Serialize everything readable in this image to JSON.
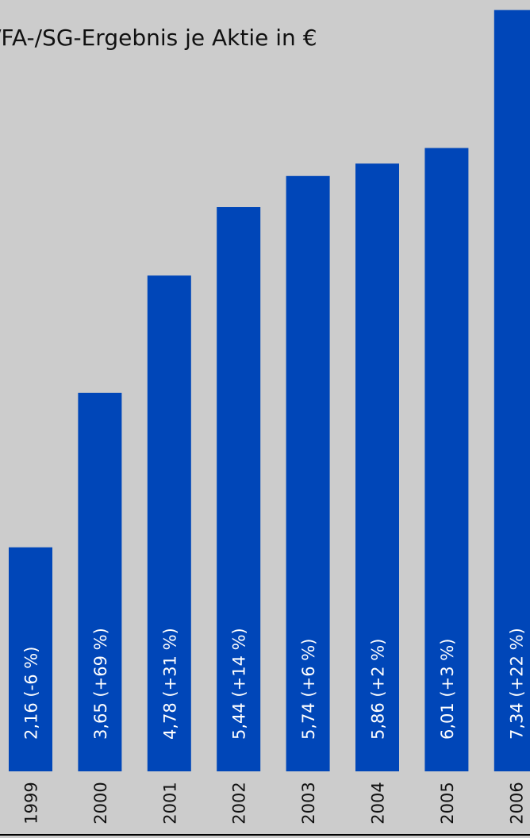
{
  "chart_data": {
    "type": "bar",
    "title": "/FA-/SG-Ergebnis je Aktie in €",
    "categories": [
      "1999",
      "2000",
      "2001",
      "2002",
      "2003",
      "2004",
      "2005",
      "2006"
    ],
    "values": [
      2.16,
      3.65,
      4.78,
      5.44,
      5.74,
      5.86,
      6.01,
      7.34
    ],
    "data_labels": [
      "2,16 (-6 %)",
      "3,65 (+69 %)",
      "4,78 (+31 %)",
      "5,44 (+14 %)",
      "5,74 (+6 %)",
      "5,86 (+2 %)",
      "6,01 (+3 %)",
      "7,34 (+22 %)"
    ],
    "xlabel": "",
    "ylabel": "",
    "ylim": [
      0,
      7.34
    ],
    "grid": false,
    "legend": "none",
    "colors": {
      "bar": "#0046b8",
      "background": "#cccccc",
      "baseline": "#000000",
      "text": "#111111",
      "bar_label": "#ffffff"
    }
  }
}
